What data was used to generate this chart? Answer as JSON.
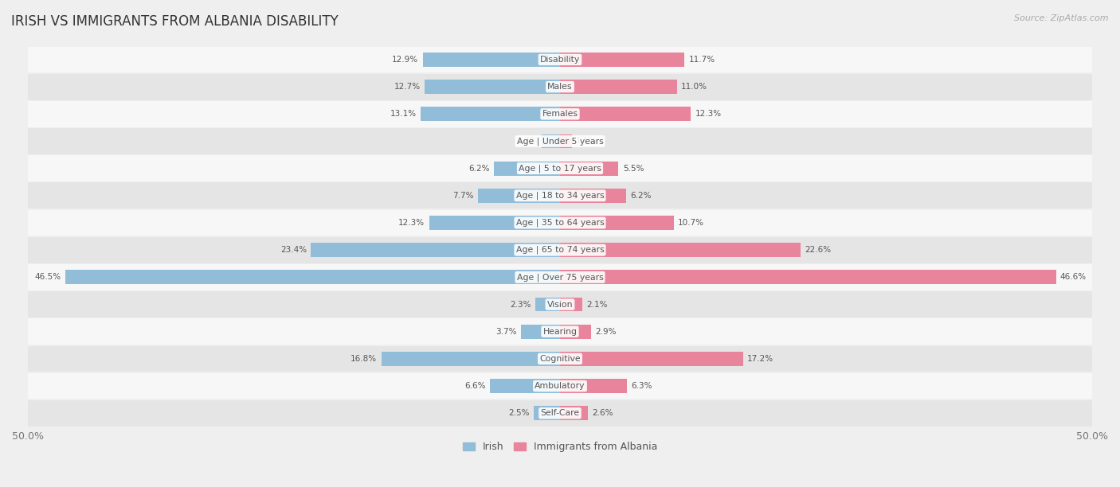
{
  "title": "IRISH VS IMMIGRANTS FROM ALBANIA DISABILITY",
  "source": "Source: ZipAtlas.com",
  "categories": [
    "Disability",
    "Males",
    "Females",
    "Age | Under 5 years",
    "Age | 5 to 17 years",
    "Age | 18 to 34 years",
    "Age | 35 to 64 years",
    "Age | 65 to 74 years",
    "Age | Over 75 years",
    "Vision",
    "Hearing",
    "Cognitive",
    "Ambulatory",
    "Self-Care"
  ],
  "irish": [
    12.9,
    12.7,
    13.1,
    1.7,
    6.2,
    7.7,
    12.3,
    23.4,
    46.5,
    2.3,
    3.7,
    16.8,
    6.6,
    2.5
  ],
  "albania": [
    11.7,
    11.0,
    12.3,
    1.1,
    5.5,
    6.2,
    10.7,
    22.6,
    46.6,
    2.1,
    2.9,
    17.2,
    6.3,
    2.6
  ],
  "irish_color": "#92bdd8",
  "albania_color": "#e8849c",
  "axis_max": 50.0,
  "bg_color": "#efefef",
  "row_bg_light": "#f7f7f7",
  "row_bg_dark": "#e5e5e5",
  "bar_height": 0.52,
  "legend_irish": "Irish",
  "legend_albania": "Immigrants from Albania"
}
